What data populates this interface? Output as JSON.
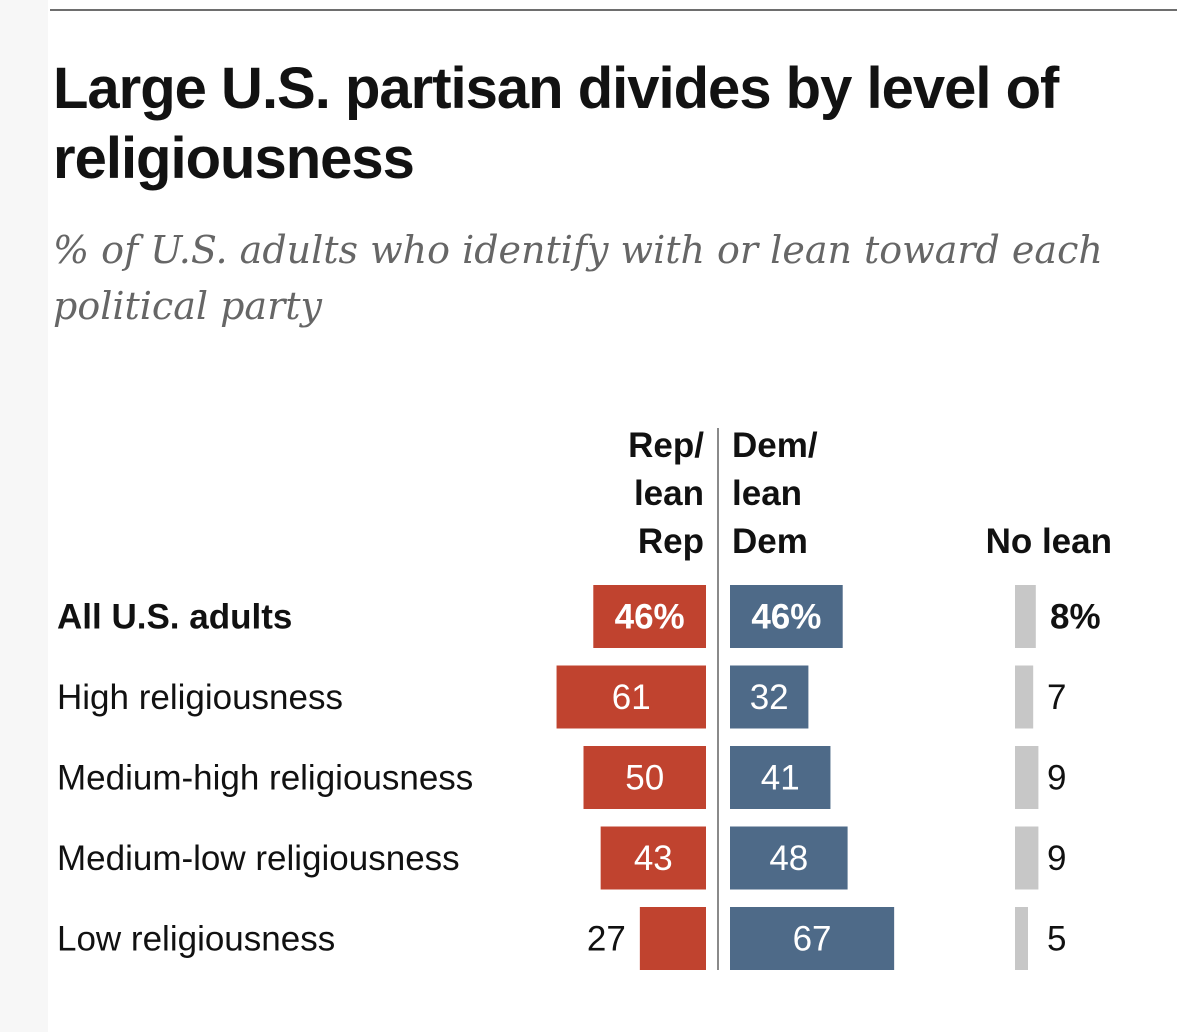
{
  "title": "Large U.S. partisan divides by level of religiousness",
  "subtitle": "% of U.S. adults who identify with or lean toward each political party",
  "colors": {
    "rep": "#c0432f",
    "dem": "#4e6a88",
    "no_lean": "#c7c7c7",
    "axis": "#8a8a8a"
  },
  "chart_data": {
    "type": "bar",
    "orientation": "horizontal-diverging",
    "title": "Large U.S. partisan divides by level of religiousness",
    "subtitle": "% of U.S. adults who identify with or lean toward each political party",
    "columns": [
      {
        "key": "rep",
        "lines": [
          "Rep/",
          "lean",
          "Rep"
        ]
      },
      {
        "key": "dem",
        "lines": [
          "Dem/",
          "lean",
          "Dem"
        ]
      },
      {
        "key": "no_lean",
        "lines": [
          "No lean"
        ]
      }
    ],
    "categories": [
      "All U.S. adults",
      "High religiousness",
      "Medium-high religiousness",
      "Medium-low religiousness",
      "Low religiousness"
    ],
    "series": [
      {
        "name": "Rep/lean Rep",
        "values": [
          46,
          61,
          50,
          43,
          27
        ],
        "labels": [
          "46%",
          "61",
          "50",
          "43",
          "27"
        ]
      },
      {
        "name": "Dem/lean Dem",
        "values": [
          46,
          32,
          41,
          48,
          67
        ],
        "labels": [
          "46%",
          "32",
          "41",
          "48",
          "67"
        ]
      },
      {
        "name": "No lean",
        "values": [
          8,
          7,
          9,
          9,
          5
        ],
        "labels": [
          "8%",
          "7",
          "9",
          "9",
          "5"
        ]
      }
    ],
    "unit": "%"
  }
}
